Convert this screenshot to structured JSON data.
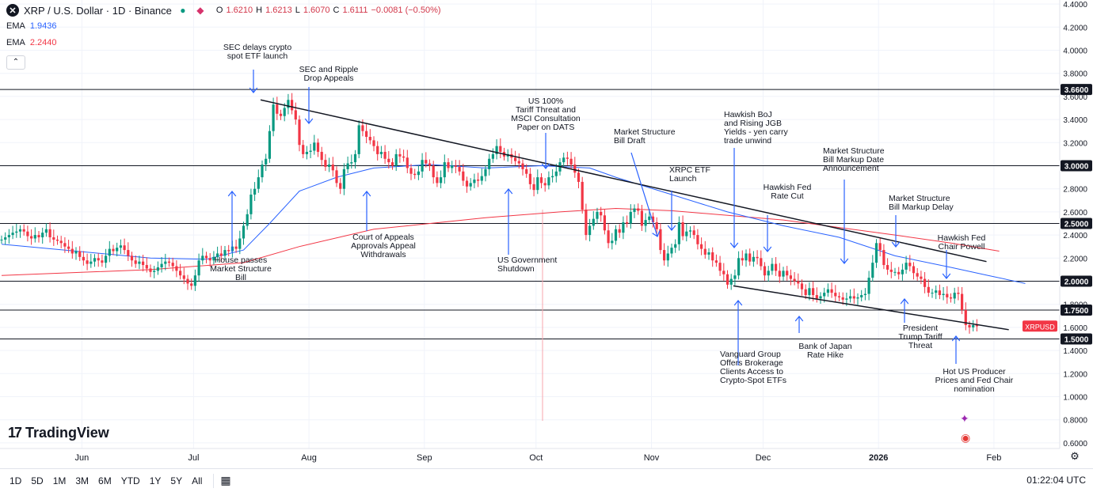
{
  "header": {
    "symbol_logo": "✕",
    "title": "XRP / U.S. Dollar · 1D · Binance",
    "ohlc": {
      "o_label": "O",
      "o": "1.6210",
      "h_label": "H",
      "h": "1.6213",
      "l_label": "L",
      "l": "1.6070",
      "c_label": "C",
      "c": "1.6111",
      "change": "−0.0081 (−0.50%)"
    },
    "ema1_label": "EMA",
    "ema1_value": "1.9436",
    "ema2_label": "EMA",
    "ema2_value": "2.2440"
  },
  "colors": {
    "up": "#089981",
    "down": "#f23645",
    "ema_fast": "#2962ff",
    "ema_slow": "#f23645",
    "level_line": "#131722",
    "annotation": "#2962ff"
  },
  "brand": "TradingView",
  "bottom_toolbar": {
    "timeframes": [
      "1D",
      "5D",
      "1M",
      "3M",
      "6M",
      "YTD",
      "1Y",
      "5Y",
      "All"
    ],
    "clock": "01:22:04 UTC"
  },
  "chart_data": {
    "type": "candlestick",
    "symbol": "XRPUSD",
    "ylim": [
      0.5,
      4.45
    ],
    "y_ticks": [
      4.4,
      4.2,
      4.0,
      3.8,
      3.6,
      3.4,
      3.2,
      3.0,
      2.8,
      2.6,
      2.4,
      2.2,
      2.0,
      1.8,
      1.6,
      1.4,
      1.2,
      1.0,
      0.8,
      0.6
    ],
    "x_range": [
      "2025-05-10",
      "2026-02-22"
    ],
    "x_ticks": [
      {
        "label": "Jun",
        "date": "2025-06-01"
      },
      {
        "label": "Jul",
        "date": "2025-07-01"
      },
      {
        "label": "Aug",
        "date": "2025-08-01"
      },
      {
        "label": "Sep",
        "date": "2025-09-01"
      },
      {
        "label": "Oct",
        "date": "2025-10-01"
      },
      {
        "label": "Nov",
        "date": "2025-11-01"
      },
      {
        "label": "Dec",
        "date": "2025-12-01"
      },
      {
        "label": "2026",
        "date": "2026-01-01",
        "bold": true
      },
      {
        "label": "Feb",
        "date": "2026-02-01"
      }
    ],
    "horizontal_levels": [
      {
        "value": 3.66,
        "label": "3.6600"
      },
      {
        "value": 3.0,
        "label": "3.0000"
      },
      {
        "value": 2.5,
        "label": "2.5000"
      },
      {
        "value": 2.0,
        "label": "2.0000"
      },
      {
        "value": 1.75,
        "label": "1.7500"
      },
      {
        "value": 1.5,
        "label": "1.5000"
      }
    ],
    "last_price": {
      "label": "XRPUSD",
      "value": 1.6111
    },
    "trendlines": [
      {
        "from": [
          "2025-07-19",
          3.57
        ],
        "to": [
          "2026-01-30",
          2.17
        ]
      },
      {
        "from": [
          "2025-11-23",
          1.96
        ],
        "to": [
          "2026-02-05",
          1.58
        ]
      }
    ],
    "closes": [
      2.36,
      2.38,
      2.4,
      2.42,
      2.43,
      2.45,
      2.43,
      2.39,
      2.37,
      2.4,
      2.38,
      2.42,
      2.45,
      2.38,
      2.36,
      2.35,
      2.33,
      2.3,
      2.28,
      2.24,
      2.26,
      2.21,
      2.18,
      2.15,
      2.17,
      2.2,
      2.18,
      2.16,
      2.22,
      2.28,
      2.26,
      2.29,
      2.31,
      2.27,
      2.22,
      2.18,
      2.15,
      2.17,
      2.14,
      2.11,
      2.08,
      2.09,
      2.12,
      2.15,
      2.17,
      2.16,
      2.13,
      2.09,
      2.05,
      2.02,
      1.98,
      1.96,
      2.05,
      2.18,
      2.22,
      2.2,
      2.18,
      2.21,
      2.24,
      2.22,
      2.27,
      2.26,
      2.3,
      2.28,
      2.37,
      2.48,
      2.58,
      2.75,
      2.8,
      2.9,
      3.01,
      3.06,
      3.3,
      3.53,
      3.45,
      3.43,
      3.5,
      3.57,
      3.48,
      3.4,
      3.18,
      3.1,
      3.12,
      3.13,
      3.2,
      3.12,
      3.05,
      2.99,
      3.01,
      2.96,
      2.85,
      2.8,
      2.97,
      3.02,
      3.03,
      3.1,
      3.35,
      3.3,
      3.25,
      3.22,
      3.17,
      3.1,
      3.12,
      3.06,
      3.03,
      3.0,
      3.1,
      3.08,
      3.07,
      2.98,
      2.93,
      2.92,
      2.95,
      3.05,
      3.02,
      3.0,
      2.9,
      2.85,
      2.9,
      3.03,
      2.98,
      3.0,
      2.99,
      2.95,
      2.87,
      2.82,
      2.85,
      2.88,
      2.87,
      2.91,
      2.97,
      3.06,
      3.1,
      3.17,
      3.12,
      3.08,
      3.1,
      3.07,
      3.04,
      3.02,
      2.97,
      2.93,
      2.84,
      2.79,
      2.9,
      2.85,
      2.83,
      2.9,
      2.91,
      2.95,
      3.03,
      3.07,
      3.06,
      3.01,
      2.94,
      2.86,
      2.62,
      2.4,
      2.48,
      2.54,
      2.6,
      2.57,
      2.44,
      2.33,
      2.35,
      2.45,
      2.42,
      2.51,
      2.5,
      2.6,
      2.63,
      2.61,
      2.48,
      2.53,
      2.56,
      2.51,
      2.45,
      2.27,
      2.18,
      2.24,
      2.29,
      2.32,
      2.51,
      2.39,
      2.43,
      2.44,
      2.4,
      2.32,
      2.28,
      2.23,
      2.25,
      2.18,
      2.16,
      2.09,
      2.06,
      1.97,
      2.02,
      2.05,
      2.2,
      2.18,
      2.24,
      2.17,
      2.21,
      2.2,
      2.13,
      2.05,
      2.09,
      2.15,
      2.09,
      2.04,
      2.09,
      2.05,
      2.02,
      2.0,
      1.98,
      1.93,
      1.88,
      1.94,
      1.88,
      1.85,
      1.87,
      1.9,
      1.93,
      1.9,
      1.87,
      1.86,
      1.84,
      1.85,
      1.87,
      1.85,
      1.86,
      1.88,
      1.89,
      2.03,
      2.16,
      2.33,
      2.27,
      2.14,
      2.1,
      2.08,
      2.08,
      2.06,
      2.1,
      2.16,
      2.13,
      2.07,
      2.04,
      2.02,
      1.95,
      1.9,
      1.9,
      1.92,
      1.88,
      1.89,
      1.86,
      1.85,
      1.9,
      1.89,
      1.75,
      1.62,
      1.6,
      1.62,
      1.61
    ],
    "ema_fast": [
      [
        0,
        2.32
      ],
      [
        20,
        2.26
      ],
      [
        40,
        2.2
      ],
      [
        55,
        2.19
      ],
      [
        65,
        2.27
      ],
      [
        72,
        2.5
      ],
      [
        80,
        2.78
      ],
      [
        90,
        2.9
      ],
      [
        100,
        2.98
      ],
      [
        115,
        3.01
      ],
      [
        130,
        2.98
      ],
      [
        145,
        3.0
      ],
      [
        158,
        2.98
      ],
      [
        165,
        2.9
      ],
      [
        180,
        2.75
      ],
      [
        195,
        2.6
      ],
      [
        210,
        2.48
      ],
      [
        225,
        2.38
      ],
      [
        240,
        2.22
      ],
      [
        255,
        2.12
      ],
      [
        265,
        2.05
      ],
      [
        275,
        1.98
      ]
    ],
    "ema_slow": [
      [
        0,
        2.05
      ],
      [
        40,
        2.1
      ],
      [
        65,
        2.16
      ],
      [
        80,
        2.3
      ],
      [
        100,
        2.45
      ],
      [
        130,
        2.55
      ],
      [
        150,
        2.6
      ],
      [
        165,
        2.63
      ],
      [
        180,
        2.61
      ],
      [
        210,
        2.53
      ],
      [
        240,
        2.4
      ],
      [
        255,
        2.33
      ],
      [
        268,
        2.26
      ]
    ],
    "annotations": [
      {
        "text": [
          "SEC delays crypto",
          "spot ETF launch"
        ],
        "text_x": 325,
        "text_y": 63,
        "align": "center",
        "ax1": 320,
        "ay1": 88,
        "ax2": 320,
        "ay2": 117
      },
      {
        "text": [
          "SEC and Ripple",
          "Drop Appeals"
        ],
        "text_x": 415,
        "text_y": 91,
        "align": "center",
        "ax1": 390,
        "ay1": 110,
        "ax2": 390,
        "ay2": 156
      },
      {
        "text": [
          "House passes",
          "Market Structure",
          "Bill"
        ],
        "text_x": 304,
        "text_y": 332,
        "align": "center",
        "ax1": 293,
        "ay1": 320,
        "ax2": 293,
        "ay2": 242
      },
      {
        "text": [
          "Court of Appeals",
          "Approvals Appeal",
          "Withdrawals"
        ],
        "text_x": 484,
        "text_y": 303,
        "align": "center",
        "ax1": 463,
        "ay1": 292,
        "ax2": 463,
        "ay2": 242
      },
      {
        "text": [
          "US 100%",
          "Tariff Threat and",
          "MSCI Consultation",
          "Paper on DATS"
        ],
        "text_x": 689,
        "text_y": 131,
        "align": "center",
        "ax1": 689,
        "ay1": 168,
        "ax2": 689,
        "ay2": 213
      },
      {
        "text": [
          "US Government",
          "Shutdown"
        ],
        "text_x": 628,
        "text_y": 332,
        "align": "left",
        "ax1": 642,
        "ay1": 322,
        "ax2": 642,
        "ay2": 239
      },
      {
        "text": [
          "Market Structure",
          "Bill Draft"
        ],
        "text_x": 775,
        "text_y": 170,
        "align": "left",
        "ax1": 797,
        "ay1": 193,
        "ax2": 830,
        "ay2": 299
      },
      {
        "text": [
          "XRPC ETF",
          "Launch"
        ],
        "text_x": 845,
        "text_y": 218,
        "align": "left",
        "ax1": 848,
        "ay1": 241,
        "ax2": 848,
        "ay2": 291
      },
      {
        "text": [
          "Hawkish BoJ",
          "and Rising JGB",
          "Yields - yen carry",
          "trade unwind"
        ],
        "text_x": 914,
        "text_y": 148,
        "align": "left",
        "ax1": 927,
        "ay1": 187,
        "ax2": 927,
        "ay2": 313
      },
      {
        "text": [
          "Hawkish Fed",
          "Rate Cut"
        ],
        "text_x": 994,
        "text_y": 240,
        "align": "center",
        "ax1": 969,
        "ay1": 272,
        "ax2": 969,
        "ay2": 318
      },
      {
        "text": [
          "Market Structure",
          "Bill Markup Date",
          "Announcement"
        ],
        "text_x": 1039,
        "text_y": 194,
        "align": "left",
        "ax1": 1066,
        "ay1": 227,
        "ax2": 1066,
        "ay2": 333
      },
      {
        "text": [
          "Market Structure",
          "Bill Markup Delay"
        ],
        "text_x": 1122,
        "text_y": 254,
        "align": "left",
        "ax1": 1131,
        "ay1": 272,
        "ax2": 1131,
        "ay2": 312
      },
      {
        "text": [
          "Hawkish Fed",
          "Chair Powell"
        ],
        "text_x": 1214,
        "text_y": 304,
        "align": "center",
        "ax1": 1195,
        "ay1": 316,
        "ax2": 1195,
        "ay2": 352
      },
      {
        "text": [
          "Vanguard Group",
          "Offers Brokerage",
          "Clients Access to",
          "Crypto-Spot ETFs"
        ],
        "text_x": 909,
        "text_y": 451,
        "align": "left",
        "ax1": 932,
        "ay1": 462,
        "ax2": 932,
        "ay2": 380
      },
      {
        "text": [
          "Bank of Japan",
          "Rate Hike"
        ],
        "text_x": 1042,
        "text_y": 441,
        "align": "center",
        "ax1": 1009,
        "ay1": 421,
        "ax2": 1009,
        "ay2": 400
      },
      {
        "text": [
          "President",
          "Trump Tariff",
          "Threat"
        ],
        "text_x": 1162,
        "text_y": 418,
        "align": "center",
        "ax1": 1142,
        "ay1": 408,
        "ax2": 1142,
        "ay2": 378
      },
      {
        "text": [
          "Hot US Producer",
          "Prices and Fed Chair",
          "nomination"
        ],
        "text_x": 1230,
        "text_y": 473,
        "align": "center",
        "ax1": 1207,
        "ay1": 460,
        "ax2": 1207,
        "ay2": 425
      }
    ]
  }
}
